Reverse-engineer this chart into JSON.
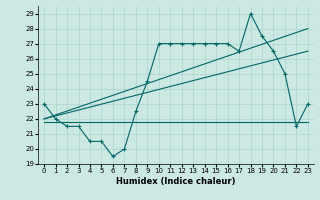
{
  "xlabel": "Humidex (Indice chaleur)",
  "ylabel": "",
  "xlim": [
    -0.5,
    23.5
  ],
  "ylim": [
    19,
    29.5
  ],
  "xticks": [
    0,
    1,
    2,
    3,
    4,
    5,
    6,
    7,
    8,
    9,
    10,
    11,
    12,
    13,
    14,
    15,
    16,
    17,
    18,
    19,
    20,
    21,
    22,
    23
  ],
  "yticks": [
    19,
    20,
    21,
    22,
    23,
    24,
    25,
    26,
    27,
    28,
    29
  ],
  "background_color": "#cbe8e3",
  "grid_color": "#aad4cc",
  "line_color": "#006666",
  "line1_x": [
    0,
    1,
    2,
    3,
    4,
    5,
    6,
    7,
    8,
    9,
    10,
    11,
    12,
    13,
    14,
    15,
    16,
    17,
    18,
    19,
    20,
    21,
    22,
    23
  ],
  "line1_y": [
    23,
    22,
    21.5,
    21.5,
    20.5,
    20.5,
    19.5,
    20,
    22.5,
    24.5,
    27,
    27,
    27,
    27,
    27,
    27,
    27,
    26.5,
    29,
    27.5,
    26.5,
    25,
    21.5,
    23
  ],
  "line2_x": [
    0,
    23
  ],
  "line2_y": [
    21.8,
    21.8
  ],
  "line3_x": [
    0,
    23
  ],
  "line3_y": [
    22,
    28
  ],
  "line4_x": [
    0,
    23
  ],
  "line4_y": [
    22,
    26.5
  ]
}
